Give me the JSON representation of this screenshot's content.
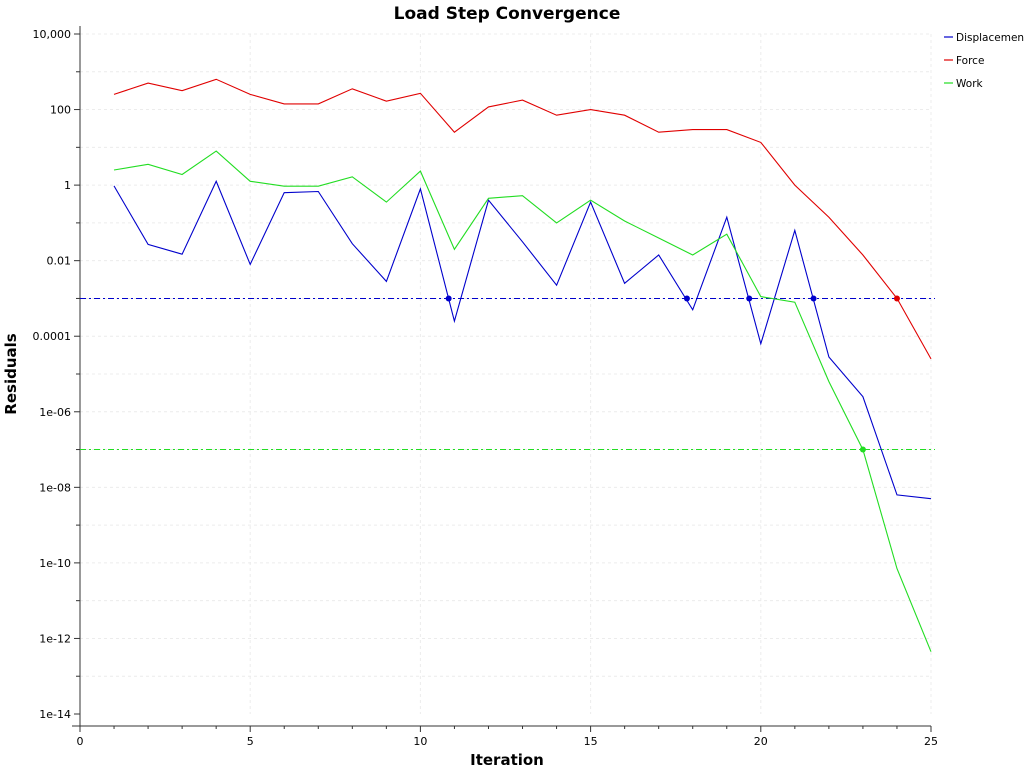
{
  "chart_data": {
    "type": "line",
    "title": "Load Step Convergence",
    "xlabel": "Iteration",
    "ylabel": "Residuals",
    "xlim": [
      0,
      25
    ],
    "ylim_log10": [
      -14,
      4
    ],
    "y_scale": "log",
    "grid": true,
    "legend_position": "top-right",
    "x_ticks": [
      "0",
      "5",
      "10",
      "15",
      "20",
      "25"
    ],
    "x_tick_values": [
      0,
      5,
      10,
      15,
      20,
      25
    ],
    "y_ticks": [
      "10,000",
      "100",
      "1",
      "0.01",
      "0.0001",
      "1e-06",
      "1e-08",
      "1e-10",
      "1e-12",
      "1e-14"
    ],
    "y_tick_values": [
      4,
      2,
      0,
      -2,
      -4,
      -6,
      -8,
      -10,
      -12,
      -14
    ],
    "series": [
      {
        "name": "Displacement",
        "color": "#0000cc",
        "x": [
          1,
          2,
          3,
          4,
          5,
          6,
          7,
          8,
          9,
          10,
          11,
          12,
          13,
          14,
          15,
          16,
          17,
          18,
          19,
          20,
          21,
          22,
          23,
          24,
          25
        ],
        "log10_y": [
          -0.02,
          -1.57,
          -1.83,
          0.1,
          -2.1,
          -0.2,
          -0.17,
          -1.55,
          -2.55,
          -0.1,
          -3.6,
          -0.4,
          -1.5,
          -2.65,
          -0.45,
          -2.6,
          -1.85,
          -3.3,
          -0.85,
          -4.2,
          -1.2,
          -4.55,
          -5.6,
          -8.2,
          -8.3
        ],
        "threshold_log10": -3.0,
        "crossings_x": [
          10.83,
          17.83,
          19.66,
          21.55
        ]
      },
      {
        "name": "Force",
        "color": "#e00000",
        "x": [
          1,
          2,
          3,
          4,
          5,
          6,
          7,
          8,
          9,
          10,
          11,
          12,
          13,
          14,
          15,
          16,
          17,
          18,
          19,
          20,
          21,
          22,
          23,
          24,
          25
        ],
        "log10_y": [
          2.4,
          2.7,
          2.5,
          2.8,
          2.4,
          2.15,
          2.15,
          2.55,
          2.22,
          2.43,
          1.4,
          2.07,
          2.25,
          1.85,
          2.0,
          1.85,
          1.4,
          1.47,
          1.47,
          1.13,
          0.0,
          -0.85,
          -1.85,
          -3.0,
          -4.6
        ],
        "threshold_log10": -3.0,
        "crossings_x": [
          24.0
        ]
      },
      {
        "name": "Work",
        "color": "#22dd22",
        "x": [
          1,
          2,
          3,
          4,
          5,
          6,
          7,
          8,
          9,
          10,
          11,
          12,
          13,
          14,
          15,
          16,
          17,
          18,
          19,
          20,
          21,
          22,
          23,
          24,
          25
        ],
        "log10_y": [
          0.4,
          0.55,
          0.28,
          0.9,
          0.1,
          -0.03,
          -0.03,
          0.22,
          -0.45,
          0.37,
          -1.7,
          -0.35,
          -0.28,
          -1.0,
          -0.4,
          -0.95,
          -1.4,
          -1.85,
          -1.3,
          -2.95,
          -3.1,
          -5.2,
          -7.0,
          -10.15,
          -12.35
        ],
        "threshold_log10": -7.0,
        "crossings_x": [
          23.0
        ]
      }
    ]
  }
}
